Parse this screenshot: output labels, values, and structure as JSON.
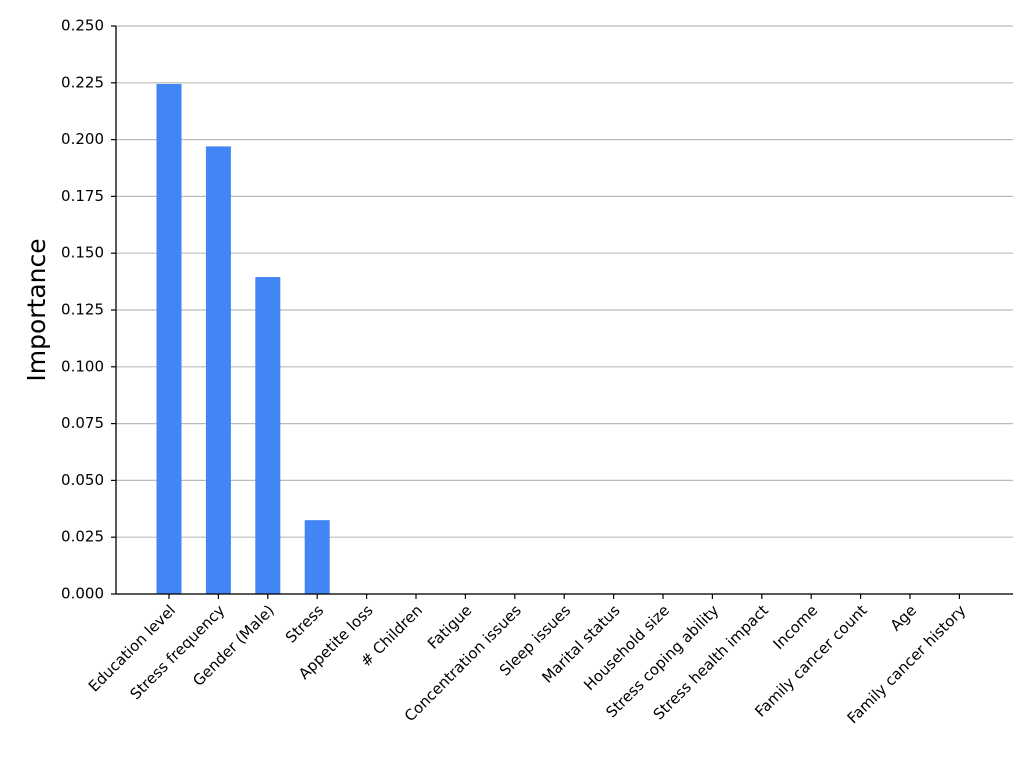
{
  "chart_data": {
    "type": "bar",
    "ylabel": "Importance",
    "categories": [
      "Education level",
      "Stress frequency",
      "Gender (Male)",
      "Stress",
      "Appetite loss",
      "# Children",
      "Fatigue",
      "Concentration issues",
      "Sleep issues",
      "Marital status",
      "Household size",
      "Stress coping ability",
      "Stress health impact",
      "Income",
      "Family cancer count",
      "Age",
      "Family cancer history"
    ],
    "values": [
      0.2245,
      0.197,
      0.1395,
      0.0325,
      0,
      0,
      0,
      0,
      0,
      0,
      0,
      0,
      0,
      0,
      0,
      0,
      0
    ],
    "color": "#4285f4",
    "ylim": [
      0,
      0.25
    ],
    "yticks": [
      {
        "value": 0,
        "label": "0.000"
      },
      {
        "value": 0.025,
        "label": "0.025"
      },
      {
        "value": 0.05,
        "label": "0.050"
      },
      {
        "value": 0.075,
        "label": "0.075"
      },
      {
        "value": 0.1,
        "label": "0.100"
      },
      {
        "value": 0.125,
        "label": "0.125"
      },
      {
        "value": 0.15,
        "label": "0.150"
      },
      {
        "value": 0.175,
        "label": "0.175"
      },
      {
        "value": 0.2,
        "label": "0.200"
      },
      {
        "value": 0.225,
        "label": "0.225"
      },
      {
        "value": 0.25,
        "label": "0.250"
      }
    ],
    "grid": true
  }
}
